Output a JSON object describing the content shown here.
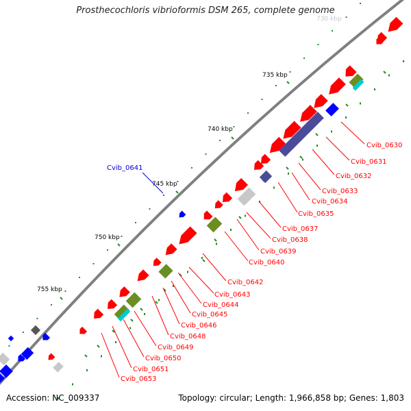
{
  "title": "Prosthecochloris vibrioformis DSM 265, complete genome",
  "footer": {
    "accession": "Accession: NC_009337",
    "summary": "Topology: circular; Length: 1,966,858 bp; Genes: 1,803"
  },
  "colors": {
    "backbone": "#8c8c8c",
    "gene_red": "#ff0000",
    "gene_blue": "#0000ff",
    "gene_purple": "#4b4b9b",
    "gene_olive": "#6b8e23",
    "gene_cyan": "#00cccc",
    "gene_gray": "#c8c8c8",
    "dark_gray": "#555555",
    "tick_green": "#228b22",
    "label_red": "#ff0000",
    "label_blue": "#0000cc"
  },
  "scale_labels": [
    {
      "text": "730 kbp",
      "faint": true
    },
    {
      "text": "735 kbp"
    },
    {
      "text": "740 kbp"
    },
    {
      "text": "745 kbp"
    },
    {
      "text": "750 kbp"
    },
    {
      "text": "755 kbp"
    }
  ],
  "gene_labels": [
    {
      "text": "Cvib_0630",
      "color": "red"
    },
    {
      "text": "Cvib_0631",
      "color": "red"
    },
    {
      "text": "Cvib_0632",
      "color": "red"
    },
    {
      "text": "Cvib_0633",
      "color": "red"
    },
    {
      "text": "Cvib_0634",
      "color": "red"
    },
    {
      "text": "Cvib_0635",
      "color": "red"
    },
    {
      "text": "Cvib_0637",
      "color": "red"
    },
    {
      "text": "Cvib_0638",
      "color": "red"
    },
    {
      "text": "Cvib_0639",
      "color": "red"
    },
    {
      "text": "Cvib_0640",
      "color": "red"
    },
    {
      "text": "Cvib_0642",
      "color": "red"
    },
    {
      "text": "Cvib_0643",
      "color": "red"
    },
    {
      "text": "Cvib_0644",
      "color": "red"
    },
    {
      "text": "Cvib_0645",
      "color": "red"
    },
    {
      "text": "Cvib_0646",
      "color": "red"
    },
    {
      "text": "Cvib_0648",
      "color": "red"
    },
    {
      "text": "Cvib_0649",
      "color": "red"
    },
    {
      "text": "Cvib_0650",
      "color": "red"
    },
    {
      "text": "Cvib_0651",
      "color": "red"
    },
    {
      "text": "Cvib_0653",
      "color": "red"
    },
    {
      "text": "Cvib_0641",
      "color": "blue"
    }
  ]
}
